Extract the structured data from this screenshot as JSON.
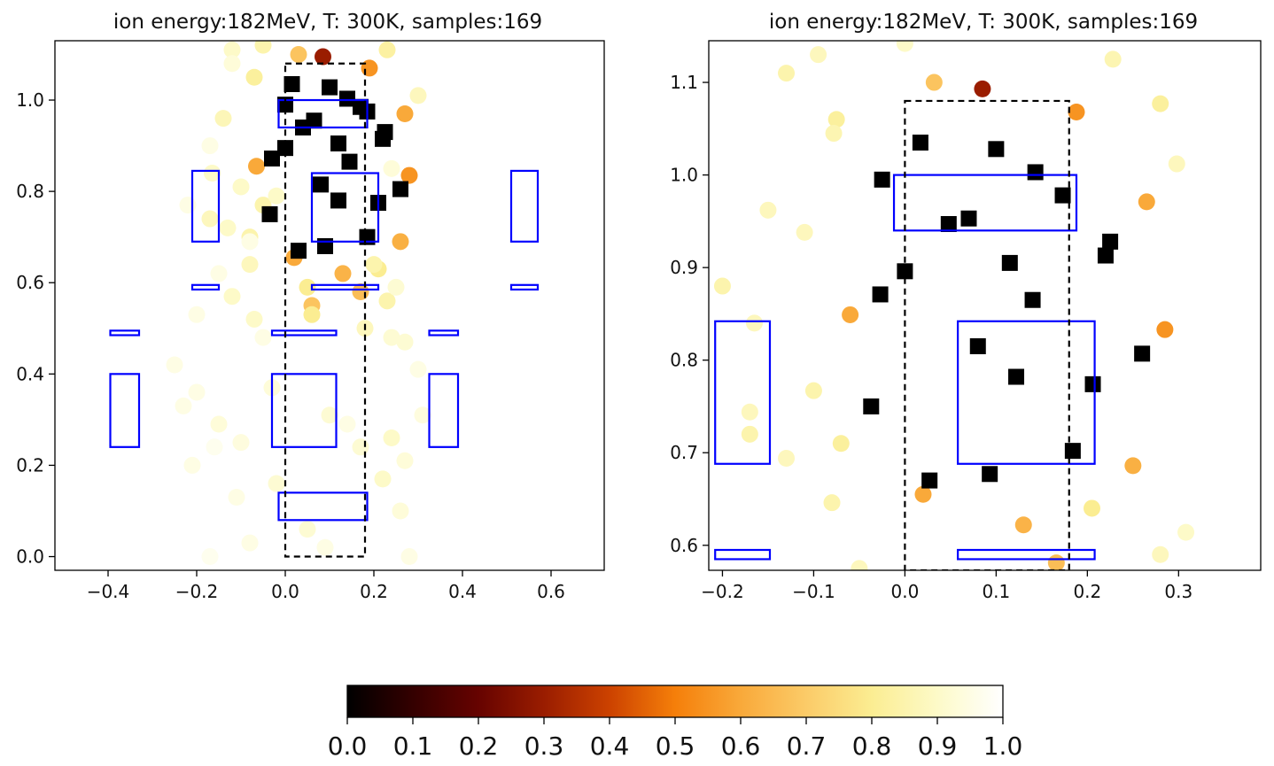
{
  "chart_data": [
    {
      "type": "scatter",
      "title": "ion energy:182MeV, T: 300K, samples:169",
      "xlabel": "",
      "ylabel": "",
      "xlim": [
        -0.52,
        0.72
      ],
      "ylim": [
        -0.03,
        1.13
      ],
      "xticks": [
        -0.4,
        -0.2,
        0.0,
        0.2,
        0.4,
        0.6
      ],
      "yticks": [
        0.0,
        0.2,
        0.4,
        0.6,
        0.8,
        1.0
      ],
      "dashed_region": {
        "x": [
          0.0,
          0.18
        ],
        "y": [
          0.0,
          1.08
        ]
      },
      "blue_rectangles": [
        {
          "x": [
            0.06,
            0.21
          ],
          "y": [
            0.69,
            0.84
          ]
        },
        {
          "x": [
            -0.015,
            0.185
          ],
          "y": [
            0.94,
            1.0
          ]
        },
        {
          "x": [
            -0.015,
            0.185
          ],
          "y": [
            0.08,
            0.14
          ]
        },
        {
          "x": [
            -0.03,
            0.115
          ],
          "y": [
            0.24,
            0.4
          ]
        },
        {
          "x": [
            -0.395,
            -0.33
          ],
          "y": [
            0.24,
            0.4
          ]
        },
        {
          "x": [
            0.325,
            0.39
          ],
          "y": [
            0.24,
            0.4
          ]
        },
        {
          "x": [
            -0.21,
            -0.15
          ],
          "y": [
            0.69,
            0.845
          ]
        },
        {
          "x": [
            0.51,
            0.57
          ],
          "y": [
            0.69,
            0.845
          ]
        },
        {
          "x": [
            -0.03,
            0.115
          ],
          "y": [
            0.485,
            0.495
          ]
        },
        {
          "x": [
            -0.395,
            -0.33
          ],
          "y": [
            0.485,
            0.495
          ]
        },
        {
          "x": [
            0.325,
            0.39
          ],
          "y": [
            0.485,
            0.495
          ]
        },
        {
          "x": [
            0.06,
            0.21
          ],
          "y": [
            0.585,
            0.595
          ]
        },
        {
          "x": [
            -0.21,
            -0.15
          ],
          "y": [
            0.585,
            0.595
          ]
        },
        {
          "x": [
            0.51,
            0.57
          ],
          "y": [
            0.585,
            0.595
          ]
        }
      ],
      "squares": [
        [
          0.0,
          0.99
        ],
        [
          0.015,
          1.035
        ],
        [
          0.1,
          1.028
        ],
        [
          0.14,
          1.003
        ],
        [
          0.17,
          0.985
        ],
        [
          0.185,
          0.975
        ],
        [
          0.04,
          0.94
        ],
        [
          0.065,
          0.955
        ],
        [
          0.225,
          0.93
        ],
        [
          0.22,
          0.915
        ],
        [
          -0.03,
          0.872
        ],
        [
          0.0,
          0.895
        ],
        [
          0.12,
          0.905
        ],
        [
          0.145,
          0.865
        ],
        [
          0.08,
          0.815
        ],
        [
          0.12,
          0.78
        ],
        [
          0.26,
          0.805
        ],
        [
          0.21,
          0.775
        ],
        [
          -0.035,
          0.75
        ],
        [
          0.09,
          0.68
        ],
        [
          0.03,
          0.67
        ],
        [
          0.185,
          0.7
        ]
      ],
      "points": [
        [
          0.085,
          1.095,
          0.3
        ],
        [
          0.19,
          1.07,
          0.55
        ],
        [
          0.03,
          1.1,
          0.68
        ],
        [
          -0.05,
          1.12,
          0.85
        ],
        [
          -0.12,
          1.11,
          0.9
        ],
        [
          0.23,
          1.11,
          0.83
        ],
        [
          0.27,
          0.97,
          0.6
        ],
        [
          -0.07,
          1.05,
          0.82
        ],
        [
          0.28,
          0.835,
          0.55
        ],
        [
          -0.065,
          0.855,
          0.6
        ],
        [
          0.26,
          0.69,
          0.62
        ],
        [
          -0.165,
          0.84,
          0.9
        ],
        [
          -0.17,
          0.74,
          0.88
        ],
        [
          -0.05,
          0.77,
          0.85
        ],
        [
          -0.08,
          0.7,
          0.85
        ],
        [
          0.02,
          0.655,
          0.6
        ],
        [
          0.13,
          0.62,
          0.63
        ],
        [
          0.17,
          0.58,
          0.66
        ],
        [
          0.21,
          0.63,
          0.8
        ],
        [
          -0.08,
          0.64,
          0.88
        ],
        [
          0.3,
          1.01,
          0.88
        ],
        [
          -0.14,
          0.96,
          0.87
        ],
        [
          0.23,
          0.56,
          0.85
        ],
        [
          0.05,
          0.59,
          0.8
        ],
        [
          0.06,
          0.55,
          0.68
        ],
        [
          0.06,
          0.53,
          0.8
        ],
        [
          -0.07,
          0.52,
          0.9
        ],
        [
          0.18,
          0.5,
          0.88
        ],
        [
          0.24,
          0.48,
          0.92
        ],
        [
          -0.25,
          0.42,
          0.95
        ],
        [
          -0.23,
          0.33,
          0.95
        ],
        [
          -0.2,
          0.36,
          0.95
        ],
        [
          -0.15,
          0.29,
          0.93
        ],
        [
          -0.1,
          0.25,
          0.94
        ],
        [
          -0.03,
          0.37,
          0.93
        ],
        [
          0.1,
          0.31,
          0.92
        ],
        [
          0.14,
          0.29,
          0.95
        ],
        [
          0.17,
          0.24,
          0.92
        ],
        [
          0.24,
          0.26,
          0.9
        ],
        [
          0.27,
          0.21,
          0.93
        ],
        [
          0.22,
          0.17,
          0.9
        ],
        [
          0.26,
          0.1,
          0.93
        ],
        [
          -0.11,
          0.13,
          0.95
        ],
        [
          -0.02,
          0.16,
          0.92
        ],
        [
          0.05,
          0.06,
          0.92
        ],
        [
          -0.08,
          0.03,
          0.95
        ],
        [
          0.09,
          0.02,
          0.95
        ],
        [
          0.28,
          0.0,
          0.95
        ],
        [
          -0.17,
          0.0,
          0.97
        ],
        [
          -0.16,
          0.24,
          0.97
        ],
        [
          -0.12,
          0.57,
          0.9
        ],
        [
          -0.15,
          0.62,
          0.95
        ],
        [
          -0.13,
          0.72,
          0.9
        ],
        [
          -0.08,
          0.69,
          0.95
        ],
        [
          -0.02,
          0.79,
          0.9
        ],
        [
          -0.1,
          0.81,
          0.9
        ],
        [
          -0.17,
          0.9,
          0.95
        ],
        [
          -0.12,
          1.08,
          0.93
        ],
        [
          0.27,
          0.47,
          0.92
        ],
        [
          0.3,
          0.41,
          0.95
        ],
        [
          0.31,
          0.31,
          0.94
        ],
        [
          -0.05,
          0.48,
          0.95
        ],
        [
          0.25,
          0.59,
          0.92
        ],
        [
          0.2,
          0.64,
          0.85
        ],
        [
          0.24,
          0.85,
          0.93
        ],
        [
          -0.22,
          0.77,
          0.95
        ],
        [
          -0.2,
          0.53,
          0.95
        ],
        [
          -0.21,
          0.2,
          0.95
        ]
      ]
    },
    {
      "type": "scatter",
      "title": "ion energy:182MeV, T: 300K, samples:169",
      "xlabel": "",
      "ylabel": "",
      "xlim": [
        -0.215,
        0.39
      ],
      "ylim": [
        0.573,
        1.145
      ],
      "xticks": [
        -0.2,
        -0.1,
        0.0,
        0.1,
        0.2,
        0.3
      ],
      "yticks": [
        0.6,
        0.7,
        0.8,
        0.9,
        1.0,
        1.1
      ],
      "dashed_region": {
        "x": [
          0.0,
          0.18
        ],
        "y": [
          0.573,
          1.08
        ]
      },
      "blue_rectangles": [
        {
          "x": [
            -0.012,
            0.188
          ],
          "y": [
            0.94,
            1.0
          ]
        },
        {
          "x": [
            0.058,
            0.208
          ],
          "y": [
            0.688,
            0.842
          ]
        },
        {
          "x": [
            -0.208,
            -0.148
          ],
          "y": [
            0.688,
            0.842
          ]
        },
        {
          "x": [
            0.058,
            0.208
          ],
          "y": [
            0.585,
            0.595
          ]
        },
        {
          "x": [
            -0.208,
            -0.148
          ],
          "y": [
            0.585,
            0.595
          ]
        }
      ],
      "squares": [
        [
          0.017,
          1.035
        ],
        [
          0.1,
          1.028
        ],
        [
          0.143,
          1.003
        ],
        [
          0.173,
          0.978
        ],
        [
          -0.025,
          0.995
        ],
        [
          0.048,
          0.947
        ],
        [
          0.07,
          0.953
        ],
        [
          0.225,
          0.928
        ],
        [
          0.22,
          0.913
        ],
        [
          -0.027,
          0.871
        ],
        [
          0.0,
          0.896
        ],
        [
          0.115,
          0.905
        ],
        [
          0.14,
          0.865
        ],
        [
          0.08,
          0.815
        ],
        [
          0.122,
          0.782
        ],
        [
          0.26,
          0.807
        ],
        [
          0.206,
          0.774
        ],
        [
          -0.037,
          0.75
        ],
        [
          0.093,
          0.677
        ],
        [
          0.027,
          0.67
        ],
        [
          0.184,
          0.702
        ]
      ],
      "points": [
        [
          0.085,
          1.093,
          0.3
        ],
        [
          0.188,
          1.068,
          0.55
        ],
        [
          0.032,
          1.1,
          0.68
        ],
        [
          -0.095,
          1.13,
          0.88
        ],
        [
          -0.13,
          1.11,
          0.85
        ],
        [
          0.228,
          1.125,
          0.86
        ],
        [
          0.28,
          1.077,
          0.82
        ],
        [
          0.298,
          1.012,
          0.88
        ],
        [
          -0.075,
          1.06,
          0.82
        ],
        [
          -0.078,
          1.045,
          0.86
        ],
        [
          0.265,
          0.971,
          0.6
        ],
        [
          -0.15,
          0.962,
          0.88
        ],
        [
          -0.11,
          0.938,
          0.88
        ],
        [
          -0.2,
          0.88,
          0.85
        ],
        [
          -0.06,
          0.849,
          0.6
        ],
        [
          0.285,
          0.833,
          0.55
        ],
        [
          -0.165,
          0.84,
          0.88
        ],
        [
          -0.17,
          0.744,
          0.88
        ],
        [
          -0.17,
          0.72,
          0.85
        ],
        [
          -0.1,
          0.767,
          0.85
        ],
        [
          -0.07,
          0.71,
          0.82
        ],
        [
          -0.13,
          0.694,
          0.88
        ],
        [
          -0.08,
          0.646,
          0.85
        ],
        [
          0.02,
          0.655,
          0.6
        ],
        [
          0.13,
          0.622,
          0.63
        ],
        [
          0.166,
          0.581,
          0.66
        ],
        [
          0.205,
          0.64,
          0.8
        ],
        [
          0.25,
          0.686,
          0.62
        ],
        [
          0.28,
          0.59,
          0.88
        ],
        [
          0.308,
          0.614,
          0.9
        ],
        [
          -0.05,
          0.575,
          0.88
        ],
        [
          0.0,
          1.142,
          0.9
        ]
      ]
    }
  ],
  "colorbar": {
    "ticks": [
      "0.0",
      "0.1",
      "0.2",
      "0.3",
      "0.4",
      "0.5",
      "0.6",
      "0.7",
      "0.8",
      "0.9",
      "1.0"
    ],
    "stops": [
      "#000000",
      "#340000",
      "#660300",
      "#9a1d00",
      "#cc4200",
      "#f57f0a",
      "#f9a93a",
      "#fbcb68",
      "#fbed92",
      "#fdfac8",
      "#ffffff"
    ]
  }
}
